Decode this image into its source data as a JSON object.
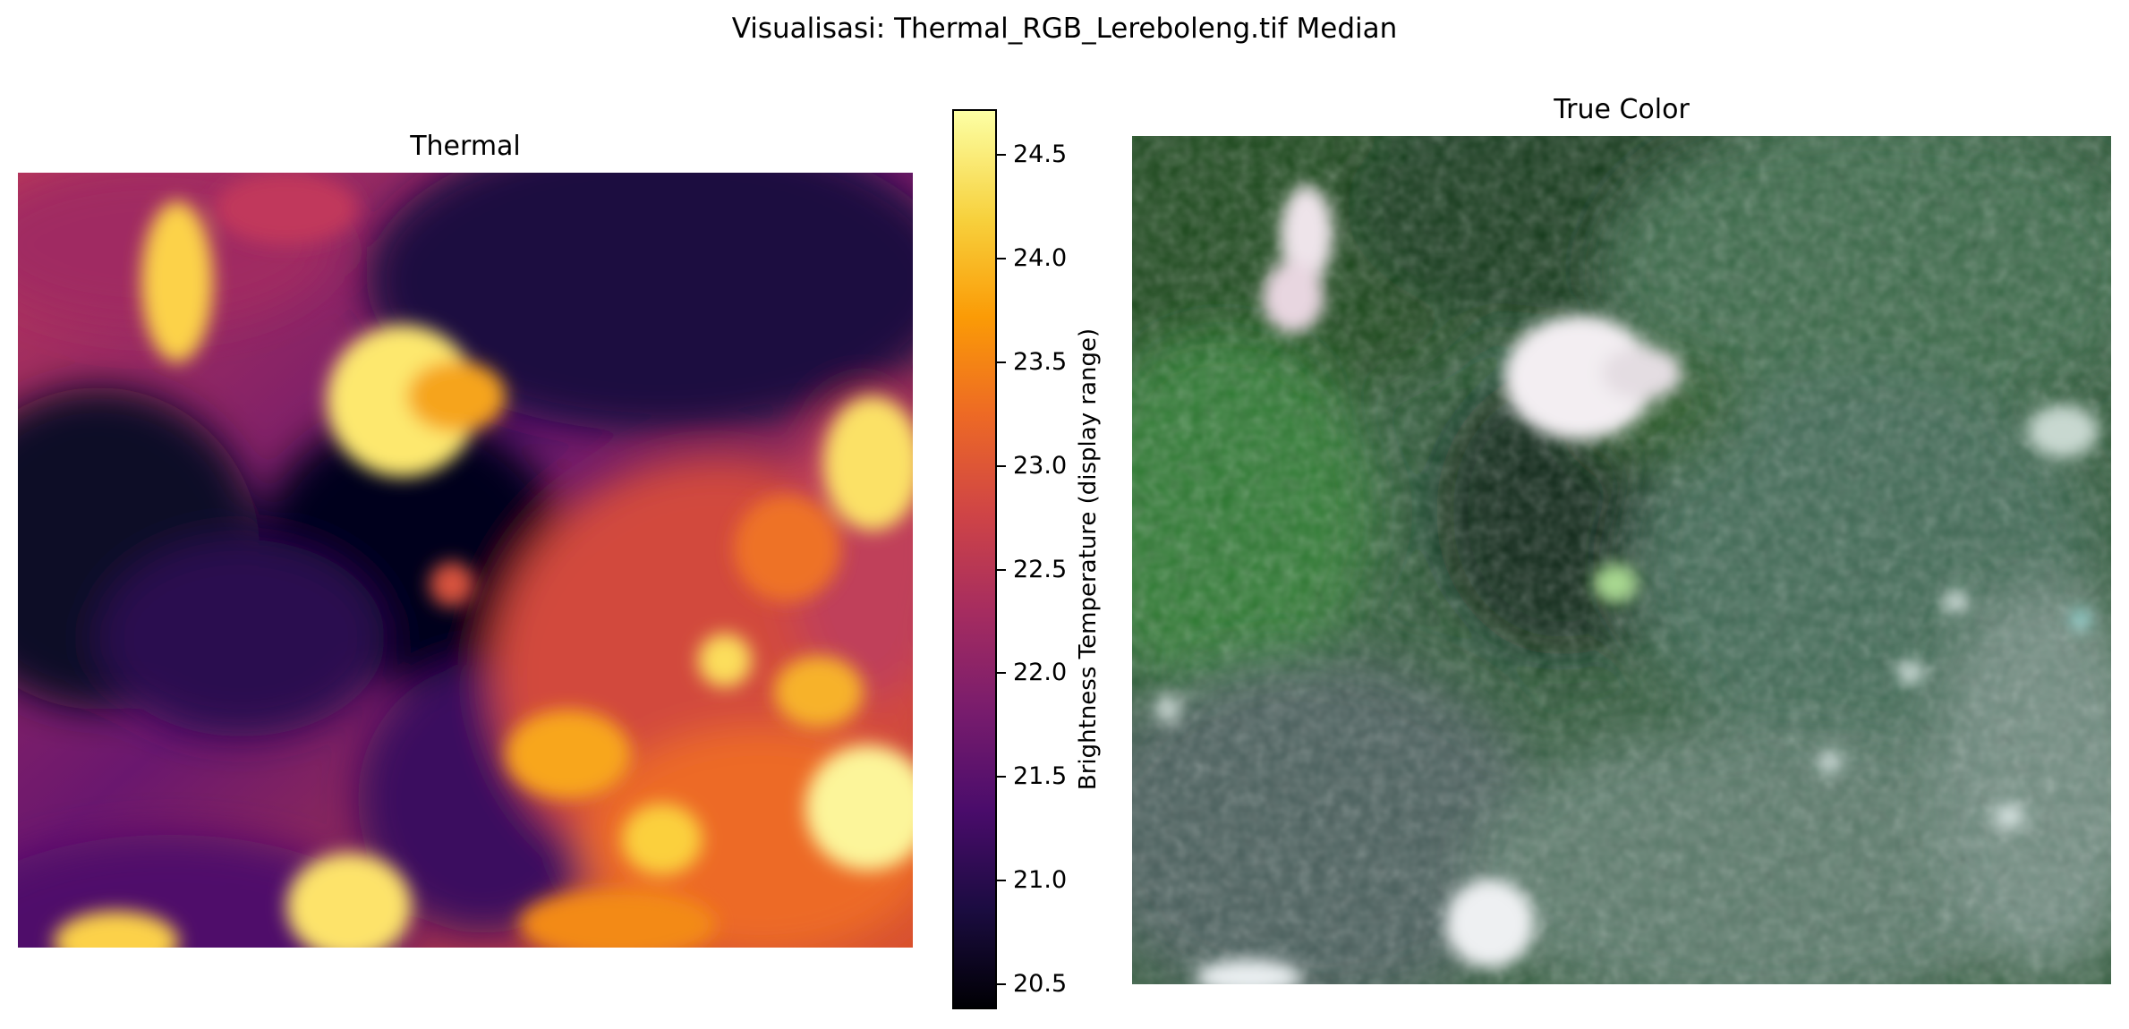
{
  "figure": {
    "suptitle": "Visualisasi: Thermal_RGB_Lereboleng.tif Median"
  },
  "thermal_panel": {
    "title": "Thermal",
    "colormap": "inferno"
  },
  "truecolor_panel": {
    "title": "True Color"
  },
  "colorbar": {
    "label": "Brightness Temperature (display range)",
    "min": 20.38,
    "max": 24.72,
    "ticks": [
      "24.5",
      "24.0",
      "23.5",
      "23.0",
      "22.5",
      "22.0",
      "21.5",
      "21.0",
      "20.5"
    ]
  }
}
